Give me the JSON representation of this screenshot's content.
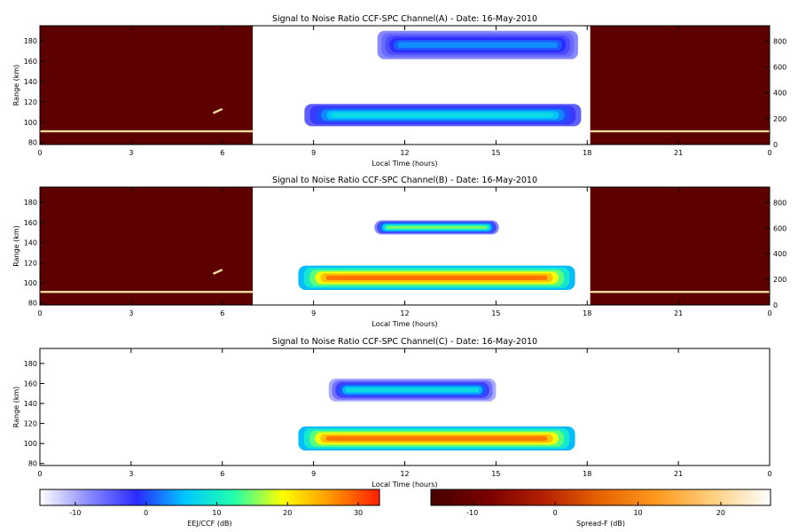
{
  "chart_data": [
    {
      "type": "heatmap",
      "title": "Signal to Noise Ratio CCF-SPC Channel(A) - Date: 16-May-2010",
      "xlabel": "Local Time (hours)",
      "ylabel": "Range (km)",
      "xlim": [
        0,
        24
      ],
      "ylim": [
        78,
        195
      ],
      "x_ticks": [
        "0",
        "3",
        "6",
        "9",
        "12",
        "15",
        "18",
        "21",
        "0"
      ],
      "y_ticks": [
        "80",
        "100",
        "120",
        "140",
        "160",
        "180"
      ],
      "y2_ticks": [
        "0",
        "200",
        "400",
        "600",
        "800"
      ],
      "y2lim": [
        0,
        920
      ],
      "night_colormap": "Spread-F",
      "day_colormap": "EEJ/CCF",
      "night_intervals": [
        [
          0,
          7.0
        ],
        [
          18.1,
          24
        ]
      ],
      "day_interval": [
        7.0,
        18.0
      ],
      "night_lines": [
        {
          "x": [
            0,
            7.0
          ],
          "y": [
            91,
            91
          ],
          "snr": 20
        },
        {
          "x": [
            5.7,
            6.0
          ],
          "y": [
            109,
            113
          ],
          "snr": 20
        },
        {
          "x": [
            18.1,
            24
          ],
          "y": [
            91,
            91
          ],
          "snr": 20
        }
      ],
      "echo_regions": [
        {
          "t0": 8.7,
          "t1": 17.8,
          "r0": 96,
          "r1": 118,
          "snr_edge": -5,
          "snr_core": 8
        },
        {
          "t0": 11.1,
          "t1": 17.7,
          "r0": 162,
          "r1": 190,
          "snr_edge": -8,
          "snr_core": 3
        }
      ]
    },
    {
      "type": "heatmap",
      "title": "Signal to Noise Ratio CCF-SPC Channel(B) - Date: 16-May-2010",
      "xlabel": "Local Time (hours)",
      "ylabel": "Range (km)",
      "xlim": [
        0,
        24
      ],
      "ylim": [
        78,
        195
      ],
      "x_ticks": [
        "0",
        "3",
        "6",
        "9",
        "12",
        "15",
        "18",
        "21",
        "0"
      ],
      "y_ticks": [
        "80",
        "100",
        "120",
        "140",
        "160",
        "180"
      ],
      "y2_ticks": [
        "0",
        "200",
        "400",
        "600",
        "800"
      ],
      "y2lim": [
        0,
        920
      ],
      "night_colormap": "Spread-F",
      "day_colormap": "EEJ/CCF",
      "night_intervals": [
        [
          0,
          7.0
        ],
        [
          18.1,
          24
        ]
      ],
      "day_interval": [
        7.0,
        18.0
      ],
      "night_lines": [
        {
          "x": [
            0,
            7.0
          ],
          "y": [
            91,
            91
          ],
          "snr": 20
        },
        {
          "x": [
            5.7,
            6.0
          ],
          "y": [
            109,
            113
          ],
          "snr": 20
        },
        {
          "x": [
            18.1,
            24
          ],
          "y": [
            91,
            91
          ],
          "snr": 20
        }
      ],
      "echo_regions": [
        {
          "t0": 8.5,
          "t1": 17.6,
          "r0": 93,
          "r1": 117,
          "snr_edge": 5,
          "snr_core": 28
        },
        {
          "t0": 11.0,
          "t1": 15.1,
          "r0": 148,
          "r1": 162,
          "snr_edge": -8,
          "snr_core": 15
        }
      ]
    },
    {
      "type": "heatmap",
      "title": "Signal to Noise Ratio CCF-SPC Channel(C) - Date: 16-May-2010",
      "xlabel": "Local Time (hours)",
      "ylabel": "Range (km)",
      "xlim": [
        0,
        24
      ],
      "ylim": [
        78,
        195
      ],
      "x_ticks": [
        "0",
        "3",
        "6",
        "9",
        "12",
        "15",
        "18",
        "21",
        "0"
      ],
      "y_ticks": [
        "80",
        "100",
        "120",
        "140",
        "160",
        "180"
      ],
      "y2_ticks": [],
      "y2lim": [
        0,
        920
      ],
      "night_colormap": "",
      "day_colormap": "EEJ/CCF",
      "night_intervals": [],
      "day_interval": [
        7.0,
        18.0
      ],
      "night_lines": [],
      "echo_regions": [
        {
          "t0": 8.5,
          "t1": 17.6,
          "r0": 93,
          "r1": 117,
          "snr_edge": 5,
          "snr_core": 28
        },
        {
          "t0": 9.5,
          "t1": 15.0,
          "r0": 142,
          "r1": 165,
          "snr_edge": -10,
          "snr_core": 8
        }
      ]
    }
  ],
  "colorbars": [
    {
      "label": "EEJ/CCF (dB)",
      "range": [
        -15,
        33
      ],
      "ticks": [
        -10,
        0,
        10,
        20,
        30
      ],
      "tick_labels": [
        "-10",
        "0",
        "10",
        "20",
        "30"
      ],
      "colors": [
        "#ffffff",
        "#8b8bff",
        "#2a2aff",
        "#00c8ff",
        "#22ffaa",
        "#ffff00",
        "#ff9600",
        "#ff1e00"
      ]
    },
    {
      "label": "Spread-F (dB)",
      "range": [
        -15,
        26
      ],
      "ticks": [
        -10,
        0,
        10,
        20
      ],
      "tick_labels": [
        "-10",
        "0",
        "10",
        "20"
      ],
      "colors": [
        "#460000",
        "#780000",
        "#b42000",
        "#e66400",
        "#ff9a20",
        "#ffd080",
        "#ffffff"
      ]
    }
  ]
}
